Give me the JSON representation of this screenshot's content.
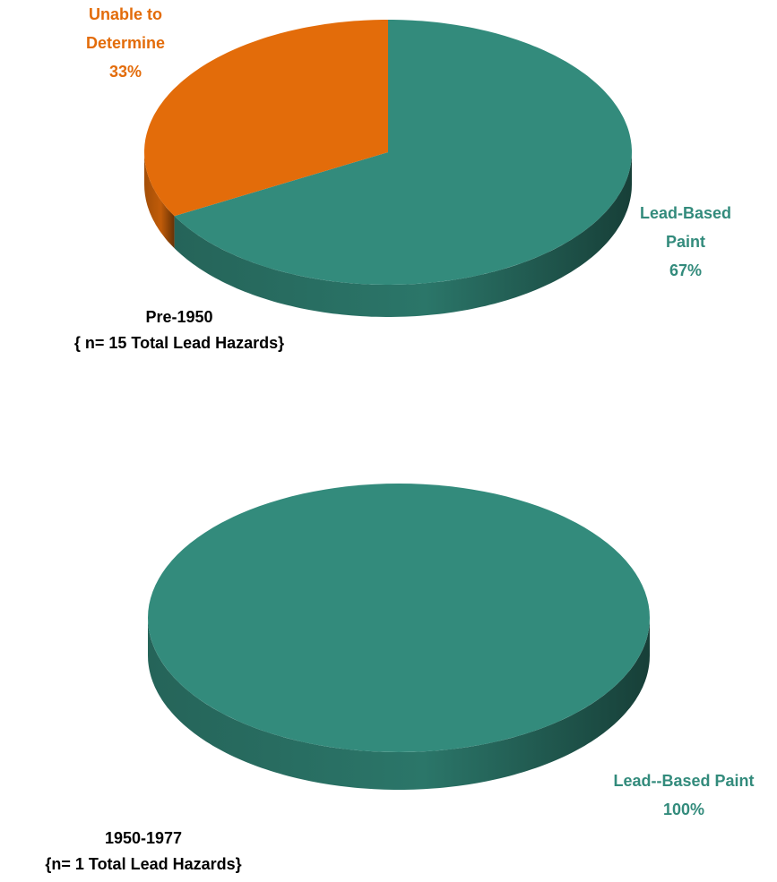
{
  "chart_data": [
    {
      "type": "pie3d",
      "title": "Pre-1950",
      "subtitle": "{ n= 15 Total Lead Hazards}",
      "categories": [
        "Lead-Based Paint",
        "Unable to Determine"
      ],
      "values": [
        67,
        33
      ],
      "value_labels": [
        "67%",
        "33%"
      ],
      "colors": [
        "#338b7c",
        "#e36c0a"
      ]
    },
    {
      "type": "pie3d",
      "title": "1950-1977",
      "subtitle": "{n= 1 Total Lead Hazards}",
      "categories": [
        "Lead--Based Paint"
      ],
      "values": [
        100
      ],
      "value_labels": [
        "100%"
      ],
      "colors": [
        "#338b7c"
      ]
    }
  ]
}
